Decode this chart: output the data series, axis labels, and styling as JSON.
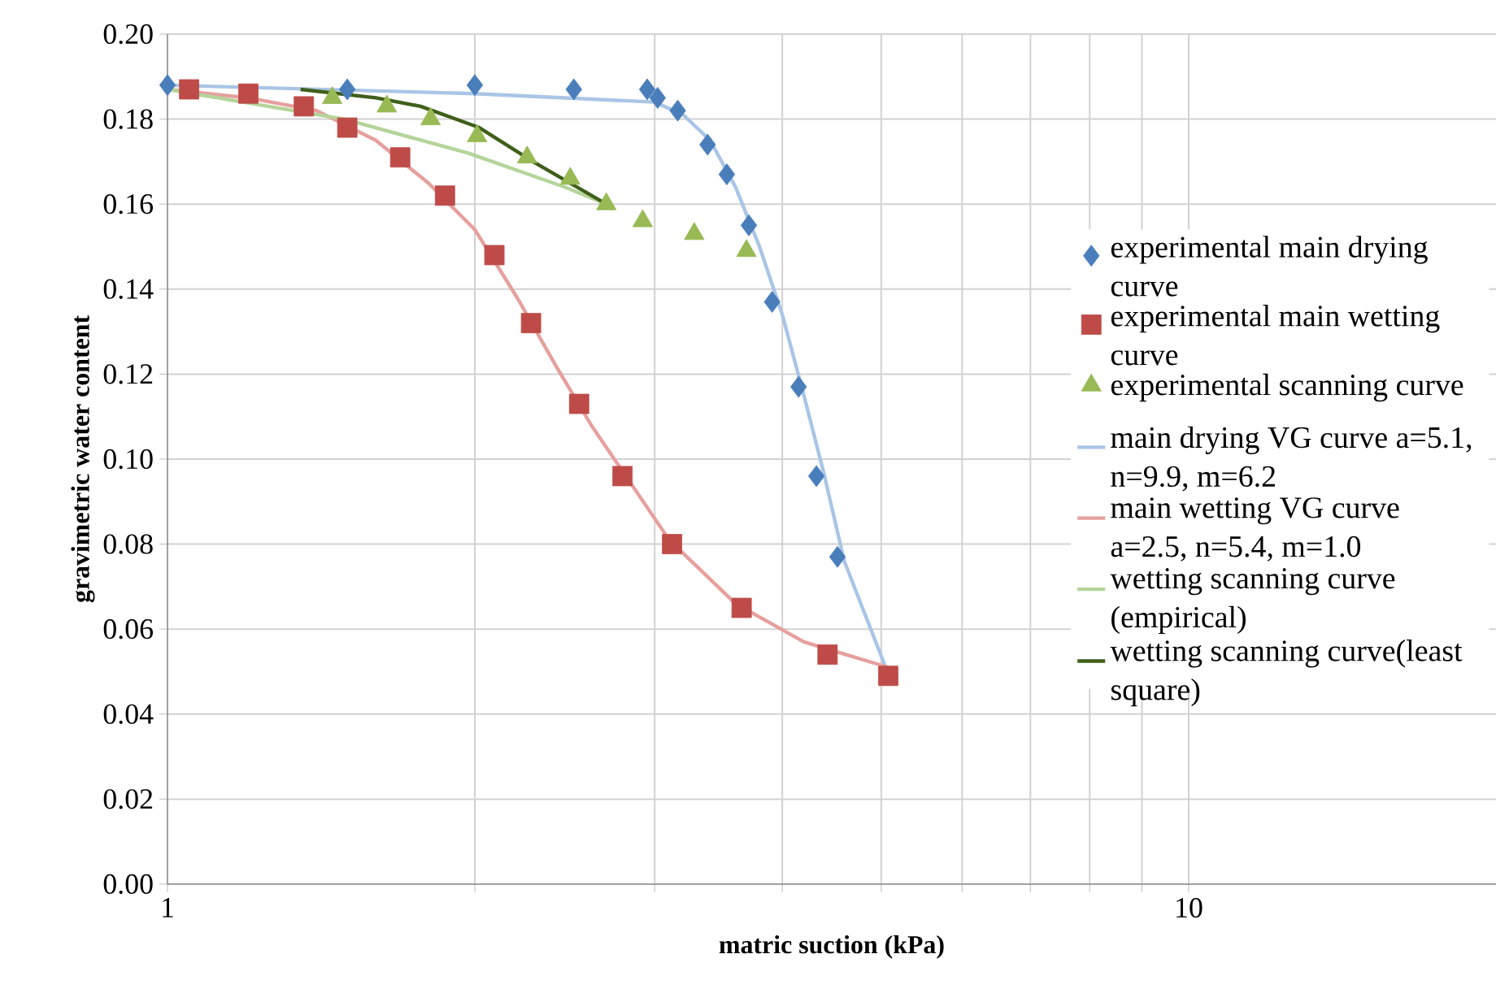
{
  "chart_data": {
    "type": "scatter",
    "xlabel": "matric suction (kPa)",
    "ylabel": "gravimetric water content",
    "log": "x",
    "grid": true,
    "legend": "right",
    "xlim": [
      1,
      20
    ],
    "ylim": [
      0,
      0.2
    ],
    "xticks": [
      1,
      {
        "value": 2,
        "label": null
      },
      {
        "value": 3,
        "label": null
      },
      {
        "value": 4,
        "label": null
      },
      {
        "value": 5,
        "label": null
      },
      {
        "value": 6,
        "label": null
      },
      {
        "value": 7,
        "label": null
      },
      {
        "value": 8,
        "label": null
      },
      {
        "value": 9,
        "label": null
      },
      10
    ],
    "yticks": [
      {
        "value": 0,
        "label": "0.00"
      },
      {
        "value": 0.02,
        "label": "0.02"
      },
      {
        "value": 0.04,
        "label": "0.04"
      },
      {
        "value": 0.06,
        "label": "0.06"
      },
      {
        "value": 0.08,
        "label": "0.08"
      },
      {
        "value": 0.1,
        "label": "0.10"
      },
      {
        "value": 0.12,
        "label": "0.12"
      },
      {
        "value": 0.14,
        "label": "0.14"
      },
      {
        "value": 0.16,
        "label": "0.16"
      },
      {
        "value": 0.18,
        "label": "0.18"
      },
      {
        "value": 0.2,
        "label": "0.20"
      }
    ],
    "series": [
      {
        "name": "experimental main drying curve",
        "type": "scatter",
        "marker": "diamond",
        "color": "#4a7ebb",
        "x": [
          1.0,
          1.5,
          2.0,
          2.5,
          2.95,
          3.02,
          3.16,
          3.38,
          3.53,
          3.71,
          3.91,
          4.15,
          4.32,
          4.53
        ],
        "values": [
          0.188,
          0.187,
          0.188,
          0.187,
          0.187,
          0.185,
          0.182,
          0.174,
          0.167,
          0.155,
          0.137,
          0.117,
          0.096,
          0.077
        ]
      },
      {
        "name": "experimental main wetting curve",
        "type": "scatter",
        "marker": "square",
        "color": "#be4b48",
        "x": [
          1.05,
          1.2,
          1.36,
          1.5,
          1.69,
          1.87,
          2.09,
          2.27,
          2.53,
          2.79,
          3.12,
          3.65,
          4.43,
          5.08
        ],
        "values": [
          0.187,
          0.186,
          0.183,
          0.178,
          0.171,
          0.162,
          0.148,
          0.132,
          0.113,
          0.096,
          0.08,
          0.065,
          0.054,
          0.049
        ]
      },
      {
        "name": "experimental scanning curve",
        "type": "scatter",
        "marker": "triangle",
        "color": "#98b954",
        "x": [
          1.45,
          1.64,
          1.81,
          2.01,
          2.25,
          2.48,
          2.69,
          2.92,
          3.28,
          3.69
        ],
        "values": [
          0.185,
          0.183,
          0.18,
          0.176,
          0.171,
          0.166,
          0.16,
          0.156,
          0.153,
          0.149
        ]
      },
      {
        "name": "main drying VG curve a=5.1, n=9.9, m=6.2",
        "type": "line",
        "marker": "none",
        "color": "#a9c5e6",
        "x": [
          1.0,
          2.0,
          3.0,
          3.2,
          3.4,
          3.6,
          3.8,
          4.0,
          4.2,
          4.4,
          4.6,
          5.05
        ],
        "values": [
          0.188,
          0.186,
          0.184,
          0.181,
          0.175,
          0.164,
          0.15,
          0.134,
          0.115,
          0.096,
          0.076,
          0.051
        ]
      },
      {
        "name": "main wetting VG curve a=2.5, n=5.4, m=1.0",
        "type": "line",
        "marker": "none",
        "color": "#e6a09e",
        "x": [
          1.0,
          1.2,
          1.4,
          1.6,
          1.8,
          2.0,
          2.2,
          2.4,
          2.6,
          3.1,
          3.6,
          4.2,
          5.08
        ],
        "values": [
          0.187,
          0.185,
          0.182,
          0.175,
          0.165,
          0.154,
          0.138,
          0.122,
          0.108,
          0.081,
          0.066,
          0.057,
          0.051
        ]
      },
      {
        "name": "wetting scanning curve (empirical)",
        "type": "line",
        "marker": "none",
        "color": "#b5d49a",
        "x": [
          1.0,
          1.49,
          1.97,
          2.45,
          2.69
        ],
        "values": [
          0.187,
          0.18,
          0.172,
          0.164,
          0.16
        ]
      },
      {
        "name": "wetting scanning curve(least square)",
        "type": "line",
        "marker": "none",
        "color": "#3f5f1a",
        "x": [
          1.35,
          1.6,
          1.77,
          2.02,
          2.28,
          2.69
        ],
        "values": [
          0.187,
          0.185,
          0.183,
          0.178,
          0.17,
          0.16
        ]
      }
    ]
  }
}
